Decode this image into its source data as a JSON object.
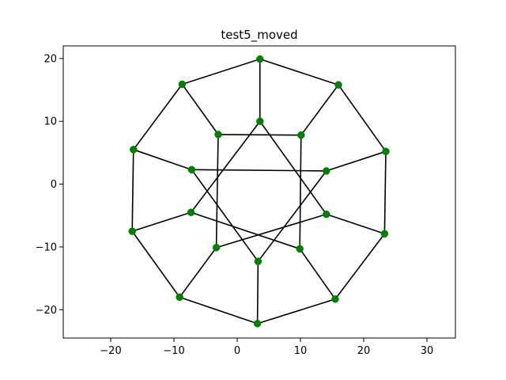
{
  "chart_data": {
    "type": "scatter",
    "title": "test5_moved",
    "xlabel": "",
    "ylabel": "",
    "xlim": [
      -27.5,
      34.5
    ],
    "ylim": [
      -24.5,
      22.0
    ],
    "xticks": [
      -20,
      -10,
      0,
      10,
      20,
      30
    ],
    "yticks": [
      -20,
      -10,
      0,
      10,
      20
    ],
    "xtick_labels": [
      "−20",
      "−10",
      "0",
      "10",
      "20",
      "30"
    ],
    "ytick_labels": [
      "−20",
      "−10",
      "0",
      "10",
      "20"
    ],
    "grid": false,
    "legend": false,
    "node_color": "#008000",
    "edge_color": "#000000",
    "nodes": [
      {
        "x": 3.6,
        "y": 19.9
      },
      {
        "x": 16.0,
        "y": 15.8
      },
      {
        "x": 23.5,
        "y": 5.2
      },
      {
        "x": 23.3,
        "y": -7.9
      },
      {
        "x": 15.5,
        "y": -18.3
      },
      {
        "x": 3.2,
        "y": -22.2
      },
      {
        "x": -9.1,
        "y": -18.0
      },
      {
        "x": -16.6,
        "y": -7.5
      },
      {
        "x": -16.4,
        "y": 5.5
      },
      {
        "x": -8.7,
        "y": 15.9
      },
      {
        "x": 3.6,
        "y": 10.0
      },
      {
        "x": 10.1,
        "y": 7.8
      },
      {
        "x": 14.1,
        "y": 2.1
      },
      {
        "x": 14.1,
        "y": -4.8
      },
      {
        "x": 9.9,
        "y": -10.3
      },
      {
        "x": 3.3,
        "y": -12.3
      },
      {
        "x": -3.3,
        "y": -10.1
      },
      {
        "x": -7.3,
        "y": -4.5
      },
      {
        "x": -7.2,
        "y": 2.3
      },
      {
        "x": -3.0,
        "y": 7.9
      }
    ],
    "edges": [
      [
        0,
        1
      ],
      [
        1,
        2
      ],
      [
        2,
        3
      ],
      [
        3,
        4
      ],
      [
        4,
        5
      ],
      [
        5,
        6
      ],
      [
        6,
        7
      ],
      [
        7,
        8
      ],
      [
        8,
        9
      ],
      [
        9,
        0
      ],
      [
        0,
        10
      ],
      [
        1,
        11
      ],
      [
        2,
        12
      ],
      [
        3,
        13
      ],
      [
        4,
        14
      ],
      [
        5,
        15
      ],
      [
        6,
        16
      ],
      [
        7,
        17
      ],
      [
        8,
        18
      ],
      [
        9,
        19
      ],
      [
        10,
        13
      ],
      [
        13,
        16
      ],
      [
        16,
        19
      ],
      [
        19,
        11
      ],
      [
        11,
        14
      ],
      [
        14,
        17
      ],
      [
        17,
        10
      ],
      [
        12,
        18
      ],
      [
        12,
        15
      ],
      [
        15,
        18
      ]
    ]
  }
}
